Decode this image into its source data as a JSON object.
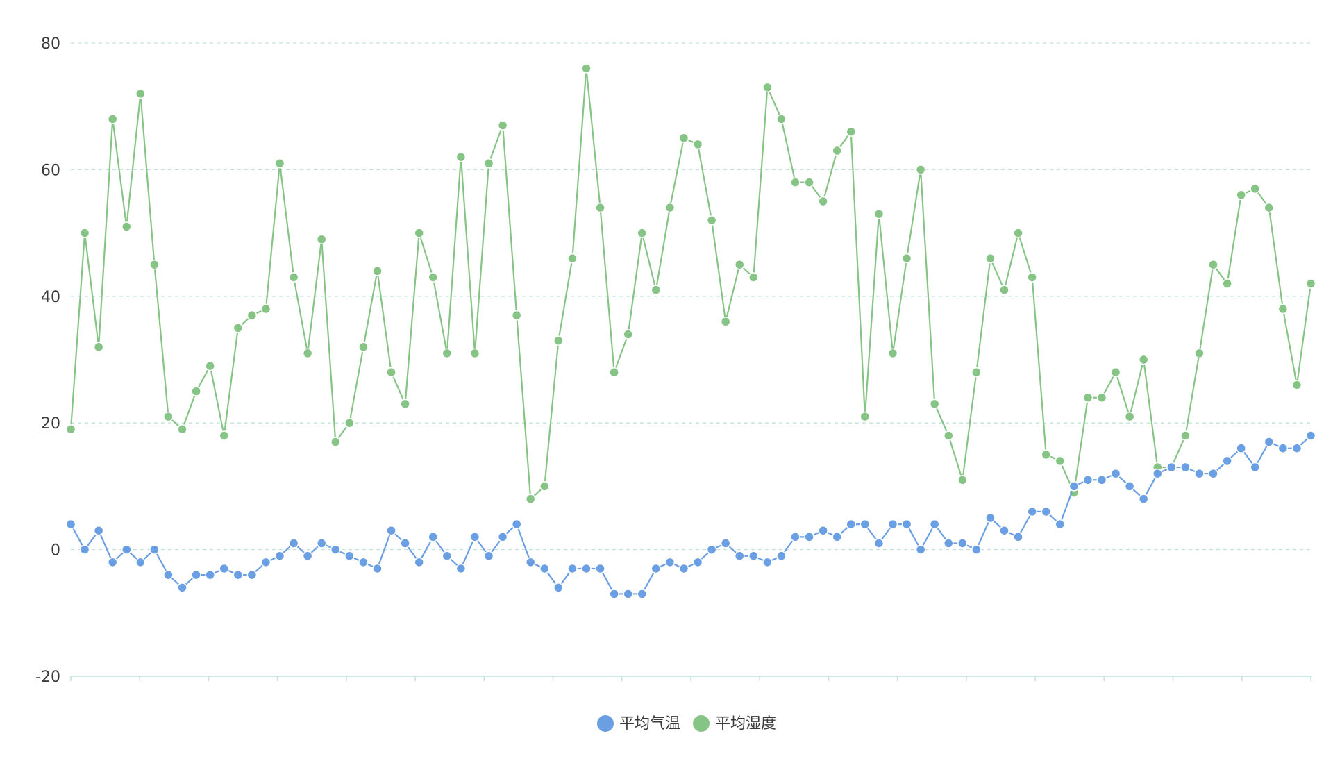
{
  "chart_data": {
    "type": "line",
    "title": "",
    "xlabel": "",
    "ylabel": "",
    "ylim": [
      -20,
      80
    ],
    "y_ticks": [
      "-20",
      "0",
      "20",
      "40",
      "60",
      "80"
    ],
    "grid": true,
    "legend_position": "bottom",
    "series": [
      {
        "name": "平均气温",
        "color": "#6b9fe3",
        "values": [
          4,
          0,
          3,
          -2,
          0,
          -2,
          0,
          -4,
          -6,
          -4,
          -4,
          -3,
          -4,
          -4,
          -2,
          -1,
          1,
          -1,
          1,
          0,
          -1,
          -2,
          -3,
          3,
          1,
          -2,
          2,
          -1,
          -3,
          2,
          -1,
          2,
          4,
          -2,
          -3,
          -6,
          -3,
          -3,
          -3,
          -7,
          -7,
          -7,
          -3,
          -2,
          -3,
          -2,
          0,
          1,
          -1,
          -1,
          -2,
          -1,
          2,
          2,
          3,
          2,
          4,
          4,
          1,
          4,
          4,
          0,
          4,
          1,
          1,
          0,
          5,
          3,
          2,
          6,
          6,
          4,
          10,
          11,
          11,
          12,
          10,
          8,
          12,
          13,
          13,
          12,
          12,
          14,
          16,
          13,
          17,
          16,
          16,
          18
        ]
      },
      {
        "name": "平均湿度",
        "color": "#86c486",
        "values": [
          19,
          50,
          32,
          68,
          51,
          72,
          45,
          21,
          19,
          25,
          29,
          18,
          35,
          37,
          38,
          61,
          43,
          31,
          49,
          17,
          20,
          32,
          44,
          28,
          23,
          50,
          43,
          31,
          62,
          31,
          61,
          67,
          37,
          8,
          10,
          33,
          46,
          76,
          54,
          28,
          34,
          50,
          41,
          54,
          65,
          64,
          52,
          36,
          45,
          43,
          73,
          68,
          58,
          58,
          55,
          63,
          66,
          21,
          53,
          31,
          46,
          60,
          23,
          18,
          11,
          28,
          46,
          41,
          50,
          43,
          15,
          14,
          9,
          24,
          24,
          28,
          21,
          30,
          13,
          13,
          18,
          31,
          45,
          42,
          56,
          57,
          54,
          38,
          26,
          42
        ]
      }
    ]
  }
}
